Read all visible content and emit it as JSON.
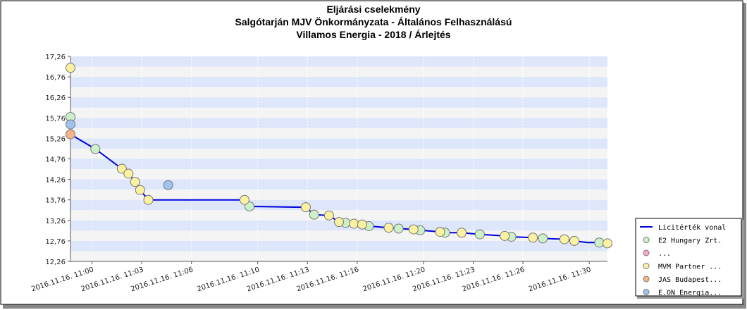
{
  "chart_data": {
    "type": "line",
    "title": [
      "Eljárási cselekmény",
      "Salgótarján MJV Önkormányzata - Általános Felhasználású",
      "Villamos Energia - 2018 / Árlejtés"
    ],
    "y_ticks": [
      "12,26",
      "12,76",
      "13,26",
      "13,76",
      "14,26",
      "14,76",
      "15,26",
      "15,76",
      "16,26",
      "16,76",
      "17,26"
    ],
    "ylim": [
      12.26,
      17.26
    ],
    "x_ticks": [
      {
        "t": 0,
        "label": "2016.11.16. 11:00"
      },
      {
        "t": 3,
        "label": "2016.11.16. 11:03"
      },
      {
        "t": 6,
        "label": "2016.11.16. 11:06"
      },
      {
        "t": 10,
        "label": "2016.11.16. 11:10"
      },
      {
        "t": 13,
        "label": "2016.11.16. 11:13"
      },
      {
        "t": 16,
        "label": "2016.11.16. 11:16"
      },
      {
        "t": 20,
        "label": "2016.11.16. 11:20"
      },
      {
        "t": 23,
        "label": "2016.11.16. 11:23"
      },
      {
        "t": 26,
        "label": "2016.11.16. 11:26"
      },
      {
        "t": 30,
        "label": "2016.11.16. 11:30"
      }
    ],
    "xlim": [
      -1.3,
      31.1
    ],
    "grid": true,
    "legend_position": "bottom-right",
    "series": [
      {
        "name": "Licitérték vonal",
        "kind": "line",
        "color": "#0000dd",
        "points": [
          [
            -1.3,
            15.36
          ],
          [
            0.2,
            15.0
          ],
          [
            1.8,
            14.52
          ],
          [
            2.2,
            14.4
          ],
          [
            2.6,
            14.2
          ],
          [
            2.9,
            14.0
          ],
          [
            3.4,
            13.76
          ],
          [
            9.2,
            13.76
          ],
          [
            9.5,
            13.6
          ],
          [
            12.9,
            13.58
          ],
          [
            13.4,
            13.4
          ],
          [
            14.3,
            13.38
          ],
          [
            14.9,
            13.22
          ],
          [
            15.3,
            13.2
          ],
          [
            15.8,
            13.18
          ],
          [
            16.3,
            13.16
          ],
          [
            16.7,
            13.12
          ],
          [
            17.9,
            13.08
          ],
          [
            18.5,
            13.06
          ],
          [
            19.4,
            13.04
          ],
          [
            19.8,
            13.02
          ],
          [
            21.0,
            12.98
          ],
          [
            21.3,
            12.96
          ],
          [
            22.3,
            12.96
          ],
          [
            23.4,
            12.92
          ],
          [
            24.9,
            12.88
          ],
          [
            25.3,
            12.86
          ],
          [
            26.6,
            12.84
          ],
          [
            27.2,
            12.82
          ],
          [
            28.5,
            12.8
          ],
          [
            29.1,
            12.76
          ],
          [
            29.9,
            12.72
          ],
          [
            30.6,
            12.72
          ],
          [
            31.1,
            12.7
          ]
        ]
      },
      {
        "name": "E2 Hungary Zrt.",
        "kind": "markers",
        "color": "#ccf0c8",
        "points": [
          [
            -1.3,
            15.78
          ],
          [
            0.2,
            15.0
          ],
          [
            9.5,
            13.6
          ],
          [
            13.4,
            13.4
          ],
          [
            15.3,
            13.2
          ],
          [
            16.7,
            13.12
          ],
          [
            18.5,
            13.06
          ],
          [
            19.8,
            13.02
          ],
          [
            21.3,
            12.96
          ],
          [
            23.4,
            12.92
          ],
          [
            25.3,
            12.86
          ],
          [
            27.2,
            12.82
          ],
          [
            30.6,
            12.72
          ]
        ]
      },
      {
        "name": "...",
        "kind": "markers",
        "color": "#f4a7c8",
        "points": []
      },
      {
        "name": "MVM Partner ...",
        "kind": "markers",
        "color": "#fbf1a0",
        "points": [
          [
            -1.3,
            16.98
          ],
          [
            1.8,
            14.52
          ],
          [
            2.2,
            14.4
          ],
          [
            2.6,
            14.2
          ],
          [
            2.9,
            14.0
          ],
          [
            3.4,
            13.76
          ],
          [
            9.2,
            13.76
          ],
          [
            12.9,
            13.58
          ],
          [
            14.3,
            13.38
          ],
          [
            14.9,
            13.22
          ],
          [
            15.8,
            13.18
          ],
          [
            16.3,
            13.16
          ],
          [
            17.9,
            13.08
          ],
          [
            19.4,
            13.04
          ],
          [
            21.0,
            12.98
          ],
          [
            22.3,
            12.96
          ],
          [
            24.9,
            12.88
          ],
          [
            26.6,
            12.84
          ],
          [
            28.5,
            12.8
          ],
          [
            29.1,
            12.76
          ],
          [
            31.1,
            12.7
          ]
        ]
      },
      {
        "name": "JAS Budapest...",
        "kind": "markers",
        "color": "#f5b489",
        "points": [
          [
            -1.3,
            15.36
          ]
        ]
      },
      {
        "name": "E.ON Energia...",
        "kind": "markers",
        "color": "#9ec3ef",
        "points": [
          [
            -1.3,
            15.6
          ],
          [
            4.6,
            14.12
          ]
        ]
      }
    ]
  }
}
